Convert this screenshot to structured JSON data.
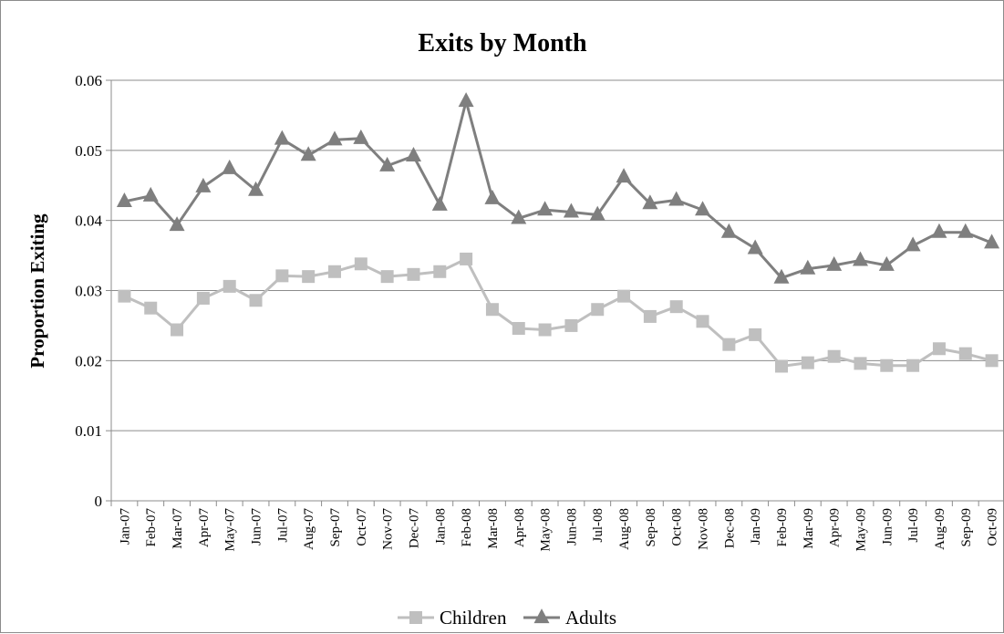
{
  "chart_data": {
    "type": "line",
    "title": "Exits by Month",
    "xlabel": "",
    "ylabel": "Proportion Exiting",
    "ylim": [
      0,
      0.06
    ],
    "yticks": [
      "0",
      "0.01",
      "0.02",
      "0.03",
      "0.04",
      "0.05",
      "0.06"
    ],
    "grid": true,
    "legend_position": "bottom",
    "categories": [
      "Jan-07",
      "Feb-07",
      "Mar-07",
      "Apr-07",
      "May-07",
      "Jun-07",
      "Jul-07",
      "Aug-07",
      "Sep-07",
      "Oct-07",
      "Nov-07",
      "Dec-07",
      "Jan-08",
      "Feb-08",
      "Mar-08",
      "Apr-08",
      "May-08",
      "Jun-08",
      "Jul-08",
      "Aug-08",
      "Sep-08",
      "Oct-08",
      "Nov-08",
      "Dec-08",
      "Jan-09",
      "Feb-09",
      "Mar-09",
      "Apr-09",
      "May-09",
      "Jun-09",
      "Jul-09",
      "Aug-09",
      "Sep-09",
      "Oct-09"
    ],
    "series": [
      {
        "name": "Children",
        "color": "#bfbfbf",
        "marker": "square",
        "values": [
          0.0292,
          0.0275,
          0.0244,
          0.0289,
          0.0306,
          0.0286,
          0.0321,
          0.032,
          0.0327,
          0.0338,
          0.032,
          0.0323,
          0.0327,
          0.0345,
          0.0273,
          0.0246,
          0.0244,
          0.025,
          0.0273,
          0.0292,
          0.0263,
          0.0277,
          0.0256,
          0.0223,
          0.0237,
          0.0192,
          0.0197,
          0.0206,
          0.0196,
          0.0193,
          0.0193,
          0.0217,
          0.021,
          0.02
        ]
      },
      {
        "name": "Adults",
        "color": "#7f7f7f",
        "marker": "triangle",
        "values": [
          0.0427,
          0.0435,
          0.0393,
          0.0448,
          0.0474,
          0.0443,
          0.0516,
          0.0493,
          0.0515,
          0.0517,
          0.0478,
          0.0492,
          0.0422,
          0.057,
          0.0431,
          0.0403,
          0.0415,
          0.0412,
          0.0408,
          0.0462,
          0.0424,
          0.0429,
          0.0415,
          0.0383,
          0.036,
          0.0318,
          0.0331,
          0.0336,
          0.0343,
          0.0336,
          0.0364,
          0.0383,
          0.0383,
          0.0368
        ]
      }
    ]
  }
}
